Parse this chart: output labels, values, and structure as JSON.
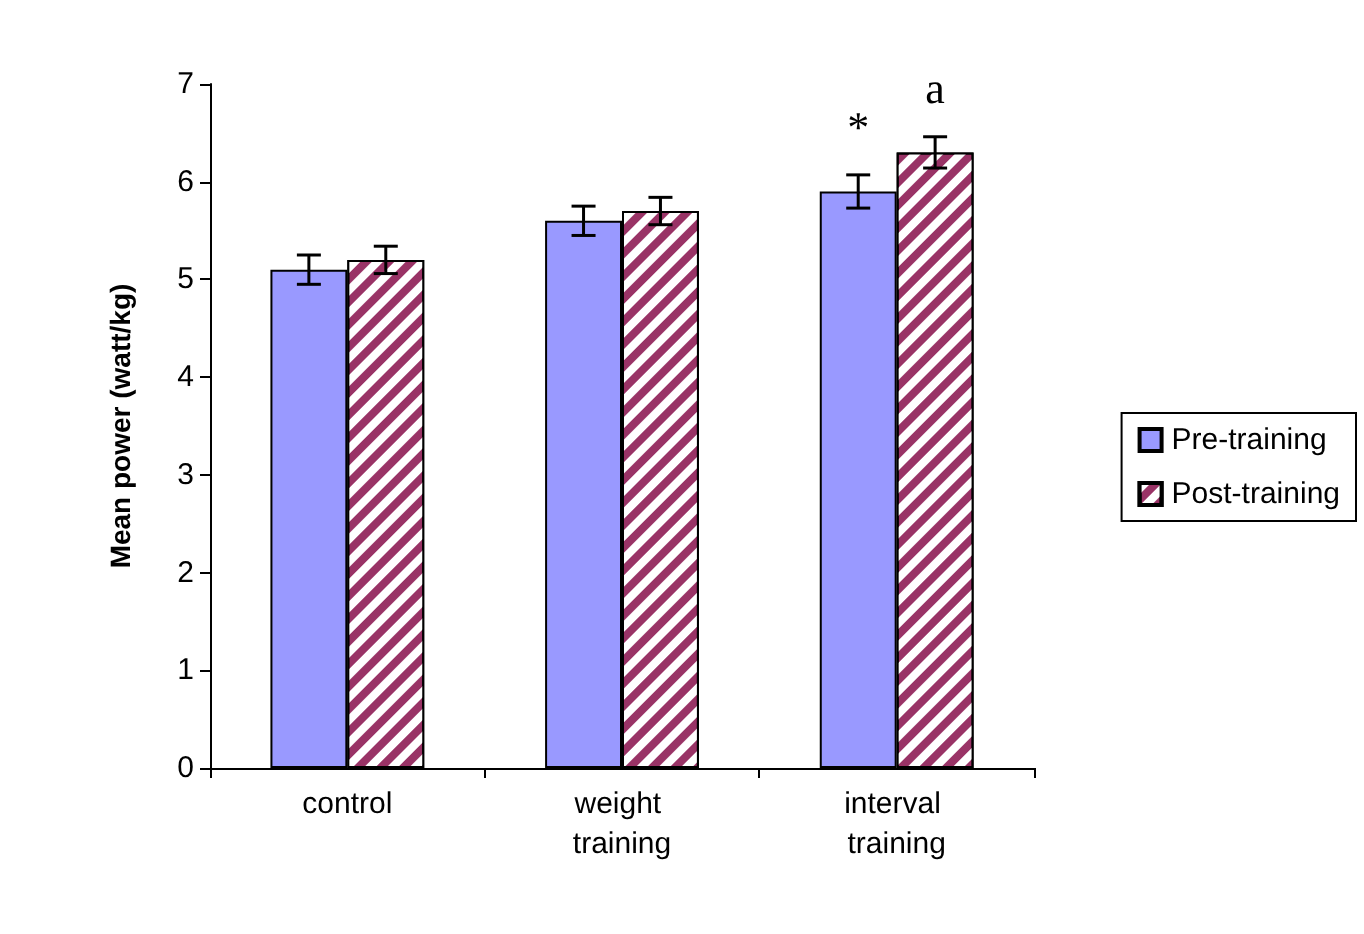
{
  "chart_data": {
    "type": "bar",
    "ylabel": "Mean power (watt/kg)",
    "categories": [
      "control",
      "weight training",
      "interval training"
    ],
    "series": [
      {
        "name": "Pre-training",
        "color": "#9999ff",
        "values": [
          5.1,
          5.6,
          5.9
        ],
        "errors": [
          0.15,
          0.15,
          0.17
        ]
      },
      {
        "name": "Post-training",
        "color": "#993366",
        "values": [
          5.2,
          5.7,
          6.3
        ],
        "errors": [
          0.14,
          0.14,
          0.16
        ]
      }
    ],
    "ylim": [
      0,
      7
    ],
    "yticks": [
      0,
      1,
      2,
      3,
      4,
      5,
      6,
      7
    ],
    "grid": false,
    "legend": "right",
    "annotations": [
      {
        "text": "*",
        "x": "interval training",
        "y": 5.9
      },
      {
        "text": "a",
        "x": "interval training",
        "y": 6.3
      }
    ]
  }
}
